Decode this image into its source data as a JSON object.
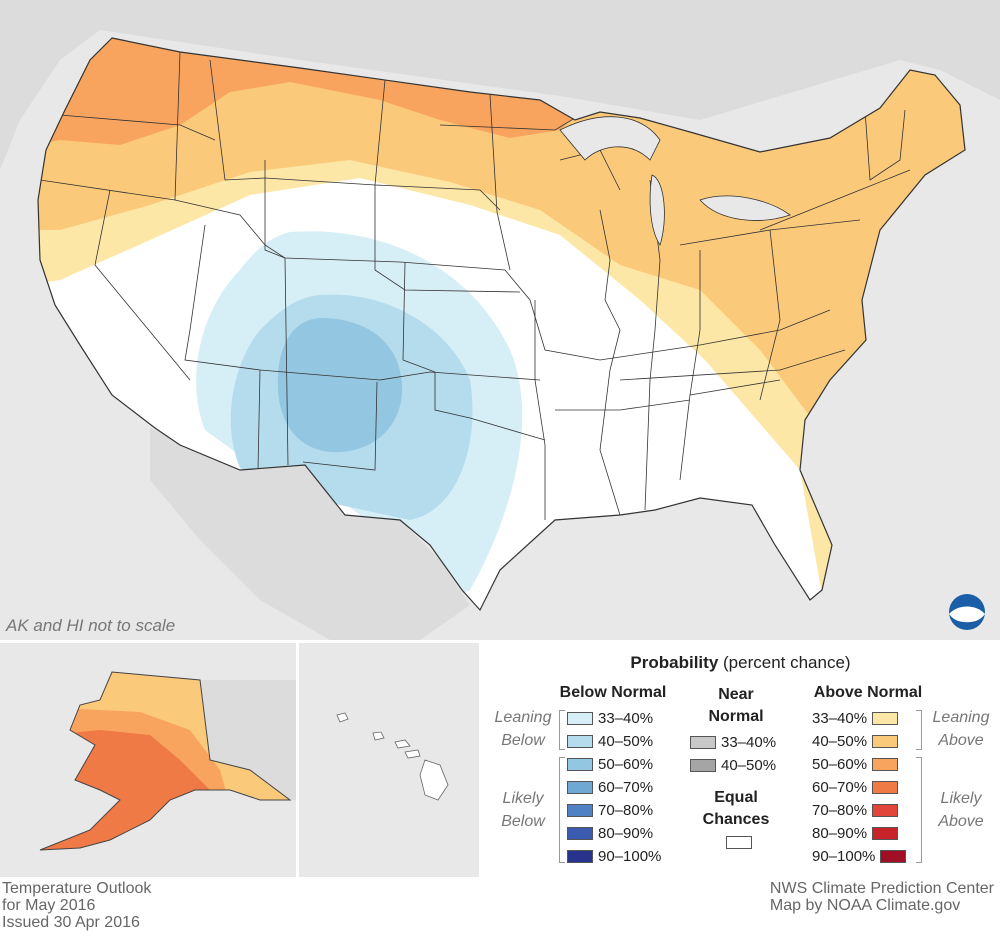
{
  "map": {
    "note": "AK and HI not to scale",
    "footer_left": [
      "Temperature Outlook",
      "for May 2016",
      "Issued 30 Apr 2016"
    ],
    "footer_right": [
      "NWS Climate Prediction Center",
      "Map by NOAA Climate.gov"
    ],
    "logo": "NOAA",
    "colors": {
      "background": "#e8e8e8",
      "land": "#ffffff",
      "above_33_40": "#fde7a6",
      "above_40_50": "#fbc97a",
      "above_50_60": "#f8a45e",
      "above_60_70": "#f07a45",
      "below_33_40": "#d6eef6",
      "below_40_50": "#b5dced",
      "below_50_60": "#93c6e0"
    }
  },
  "legend": {
    "title_bold": "Probability",
    "title_rest": " (percent chance)",
    "below": {
      "heading": "Below Normal",
      "leaning": [
        "Leaning",
        "Below"
      ],
      "likely": [
        "Likely",
        "Below"
      ],
      "items": [
        {
          "label": "33–40%",
          "color": "#d6eef6"
        },
        {
          "label": "40–50%",
          "color": "#b5dced"
        },
        {
          "label": "50–60%",
          "color": "#93c6e0"
        },
        {
          "label": "60–70%",
          "color": "#6fa8d2"
        },
        {
          "label": "70–80%",
          "color": "#4f81c4"
        },
        {
          "label": "80–90%",
          "color": "#3a5bb0"
        },
        {
          "label": "90–100%",
          "color": "#27338f"
        }
      ]
    },
    "near": {
      "heading": [
        "Near",
        "Normal"
      ],
      "items": [
        {
          "label": "33–40%",
          "color": "#c8c8c8"
        },
        {
          "label": "40–50%",
          "color": "#a5a5a5"
        }
      ],
      "equal_heading": [
        "Equal",
        "Chances"
      ],
      "equal_color": "#ffffff"
    },
    "above": {
      "heading": "Above Normal",
      "leaning": [
        "Leaning",
        "Above"
      ],
      "likely": [
        "Likely",
        "Above"
      ],
      "items": [
        {
          "label": "33–40%",
          "color": "#fde7a6"
        },
        {
          "label": "40–50%",
          "color": "#fbc97a"
        },
        {
          "label": "50–60%",
          "color": "#f8a45e"
        },
        {
          "label": "60–70%",
          "color": "#f07a45"
        },
        {
          "label": "70–80%",
          "color": "#e2463a"
        },
        {
          "label": "80–90%",
          "color": "#c8232a"
        },
        {
          "label": "90–100%",
          "color": "#a00f26"
        }
      ]
    }
  }
}
